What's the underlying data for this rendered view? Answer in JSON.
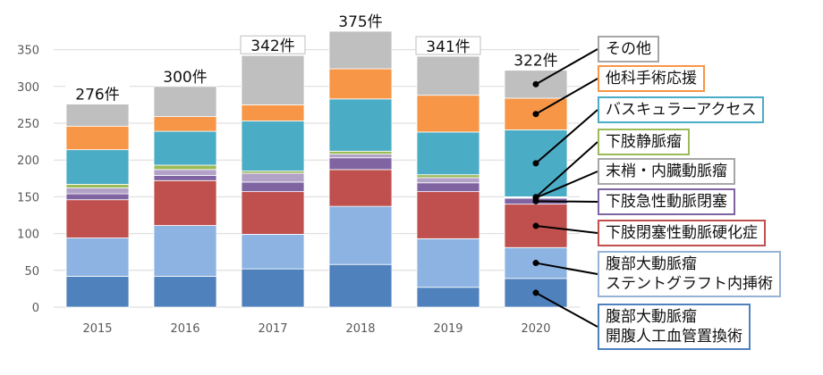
{
  "chart_data": {
    "type": "bar",
    "stacked": true,
    "categories": [
      "2015",
      "2016",
      "2017",
      "2018",
      "2019",
      "2020"
    ],
    "totals": [
      276,
      300,
      342,
      375,
      341,
      322
    ],
    "total_labels": [
      "276件",
      "300件",
      "342件",
      "375件",
      "341件",
      "322件"
    ],
    "ylim": [
      0,
      375
    ],
    "yticks": [
      0,
      50,
      100,
      150,
      200,
      250,
      300,
      350
    ],
    "grid": true,
    "series": [
      {
        "name": "腹部大動脈瘤\n開腹人工血管置換術",
        "color": "#4f81bd",
        "border": "#4f81bd",
        "values": [
          42,
          42,
          52,
          58,
          27,
          39
        ]
      },
      {
        "name": "腹部大動脈瘤\nステントグラフト内挿術",
        "color": "#8db3e2",
        "border": "#95b3d7",
        "values": [
          52,
          69,
          47,
          79,
          66,
          42
        ]
      },
      {
        "name": "下肢閉塞性動脈硬化症",
        "color": "#c0504d",
        "border": "#c0504d",
        "values": [
          52,
          61,
          58,
          50,
          64,
          59
        ]
      },
      {
        "name": "下肢急性動脈閉塞",
        "color": "#8064a2",
        "border": "#8064a2",
        "values": [
          8,
          7,
          13,
          16,
          12,
          8
        ]
      },
      {
        "name": "末梢・内臓動脈瘤",
        "color": "#b3a2c7",
        "border": "#a6a6a6",
        "values": [
          8,
          8,
          12,
          5,
          7,
          1
        ]
      },
      {
        "name": "下肢静脈瘤",
        "color": "#9bbb59",
        "border": "#9bbb59",
        "values": [
          5,
          6,
          3,
          4,
          4,
          1
        ]
      },
      {
        "name": "バスキュラーアクセス",
        "color": "#4bacc6",
        "border": "#4bacc6",
        "values": [
          47,
          46,
          68,
          71,
          58,
          91
        ]
      },
      {
        "name": "他科手術応援",
        "color": "#f79646",
        "border": "#f79646",
        "values": [
          32,
          20,
          22,
          41,
          50,
          43
        ]
      },
      {
        "name": "その他",
        "color": "#bfbfbf",
        "border": "#a6a6a6",
        "values": [
          30,
          41,
          67,
          51,
          53,
          38
        ]
      }
    ]
  }
}
